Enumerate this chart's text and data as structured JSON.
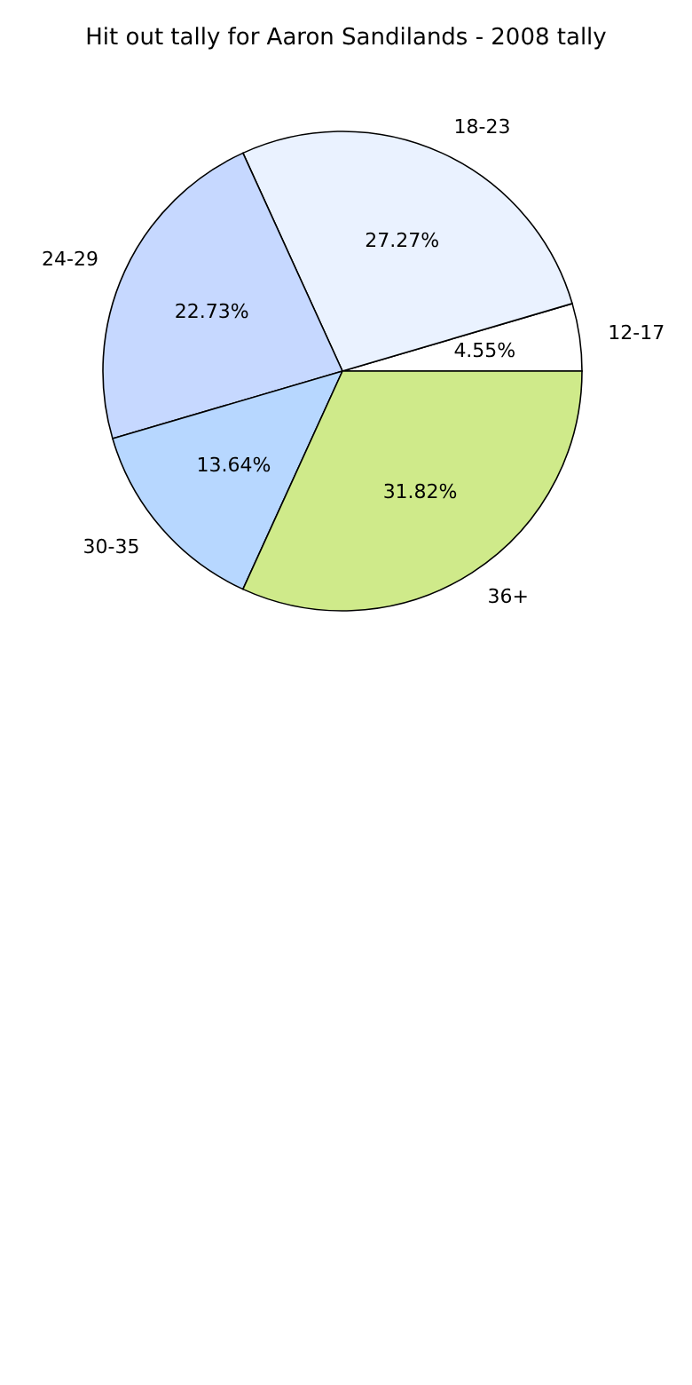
{
  "chart_data": {
    "type": "pie",
    "title": "Hit out tally for Aaron Sandilands - 2008 tally",
    "categories": [
      "12-17",
      "18-23",
      "24-29",
      "30-35",
      "36+"
    ],
    "values": [
      4.55,
      27.27,
      22.73,
      13.64,
      31.82
    ],
    "value_labels": [
      "4.55%",
      "27.27%",
      "22.73%",
      "13.64%",
      "31.82%"
    ],
    "colors": [
      "#ffffff",
      "#eaf2ff",
      "#c6d8ff",
      "#b7d7ff",
      "#cfea8a"
    ]
  }
}
